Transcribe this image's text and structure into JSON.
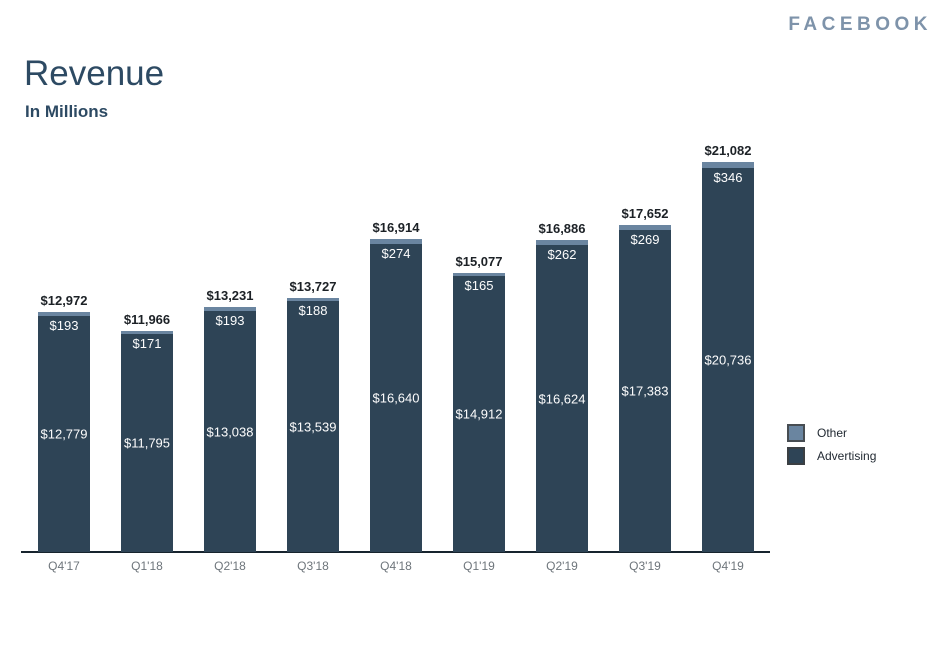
{
  "header": {
    "logo": "FACEBOOK"
  },
  "chart_data": {
    "type": "bar",
    "stacked": true,
    "title": "Revenue",
    "subtitle": "In Millions",
    "value_prefix": "$",
    "grid": false,
    "legend_position": "right",
    "categories": [
      "Q4'17",
      "Q1'18",
      "Q2'18",
      "Q3'18",
      "Q4'18",
      "Q1'19",
      "Q2'19",
      "Q3'19",
      "Q4'19"
    ],
    "series": [
      {
        "name": "Advertising",
        "color": "#2e4456",
        "values": [
          12779,
          11795,
          13038,
          13539,
          16640,
          14912,
          16624,
          17383,
          20736
        ],
        "labels": [
          "$12,779",
          "$11,795",
          "$13,038",
          "$13,539",
          "$16,640",
          "$14,912",
          "$16,624",
          "$17,383",
          "$20,736"
        ]
      },
      {
        "name": "Other",
        "color": "#6a85a0",
        "values": [
          193,
          171,
          193,
          188,
          274,
          165,
          262,
          269,
          346
        ],
        "labels": [
          "$193",
          "$171",
          "$193",
          "$188",
          "$274",
          "$165",
          "$262",
          "$269",
          "$346"
        ]
      }
    ],
    "totals": [
      12972,
      11966,
      13231,
      13727,
      16914,
      15077,
      16886,
      17652,
      21082
    ],
    "total_labels": [
      "$12,972",
      "$11,966",
      "$13,231",
      "$13,727",
      "$16,914",
      "$15,077",
      "$16,886",
      "$17,652",
      "$21,082"
    ],
    "legend": [
      {
        "label": "Other",
        "color": "#6a85a0"
      },
      {
        "label": "Advertising",
        "color": "#2e4456"
      }
    ],
    "ylim": [
      0,
      21082
    ]
  }
}
